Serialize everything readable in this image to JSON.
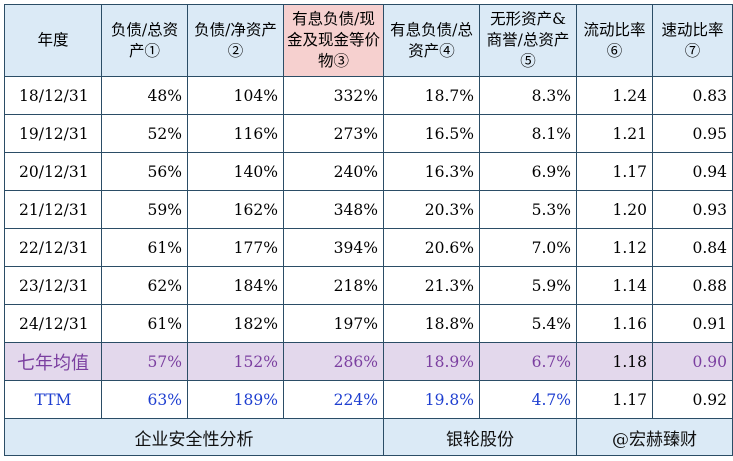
{
  "header": {
    "year": "年度",
    "c1": "负债/总资产①",
    "c2": "负债/净资产②",
    "c3": "有息负债/现金及现金等价物③",
    "c4": "有息负债/总资产④",
    "c5": "无形资产&商誉/总资产⑤",
    "c6": "流动比率⑥",
    "c7": "速动比率⑦"
  },
  "rows": [
    {
      "year": "18/12/31",
      "c1": "48%",
      "c2": "104%",
      "c3": "332%",
      "c4": "18.7%",
      "c5": "8.3%",
      "c6": "1.24",
      "c7": "0.83"
    },
    {
      "year": "19/12/31",
      "c1": "52%",
      "c2": "116%",
      "c3": "273%",
      "c4": "16.5%",
      "c5": "8.1%",
      "c6": "1.21",
      "c7": "0.95"
    },
    {
      "year": "20/12/31",
      "c1": "56%",
      "c2": "140%",
      "c3": "240%",
      "c4": "16.3%",
      "c5": "6.9%",
      "c6": "1.17",
      "c7": "0.94"
    },
    {
      "year": "21/12/31",
      "c1": "59%",
      "c2": "162%",
      "c3": "348%",
      "c4": "20.3%",
      "c5": "5.3%",
      "c6": "1.20",
      "c7": "0.93"
    },
    {
      "year": "22/12/31",
      "c1": "61%",
      "c2": "177%",
      "c3": "394%",
      "c4": "20.6%",
      "c5": "7.0%",
      "c6": "1.12",
      "c7": "0.84"
    },
    {
      "year": "23/12/31",
      "c1": "62%",
      "c2": "184%",
      "c3": "218%",
      "c4": "21.3%",
      "c5": "5.9%",
      "c6": "1.14",
      "c7": "0.88"
    },
    {
      "year": "24/12/31",
      "c1": "61%",
      "c2": "182%",
      "c3": "197%",
      "c4": "18.8%",
      "c5": "5.4%",
      "c6": "1.16",
      "c7": "0.91"
    }
  ],
  "average": {
    "year": "七年均值",
    "c1": "57%",
    "c2": "152%",
    "c3": "286%",
    "c4": "18.9%",
    "c5": "6.7%",
    "c6": "1.18",
    "c7": "0.90"
  },
  "ttm": {
    "year": "TTM",
    "c1": "63%",
    "c2": "189%",
    "c3": "224%",
    "c4": "19.8%",
    "c5": "4.7%",
    "c6": "1.17",
    "c7": "0.92"
  },
  "footer": {
    "title": "企业安全性分析",
    "company": "银轮股份",
    "author": "@宏赫臻财"
  },
  "colors": {
    "header_bg": "#dbeaf6",
    "highlight_header_bg": "#f6d0cf",
    "average_bg": "#e3d8ec",
    "average_text": "#7b3fa0",
    "ttm_text": "#1f3fd0",
    "border": "#2b4d66"
  }
}
